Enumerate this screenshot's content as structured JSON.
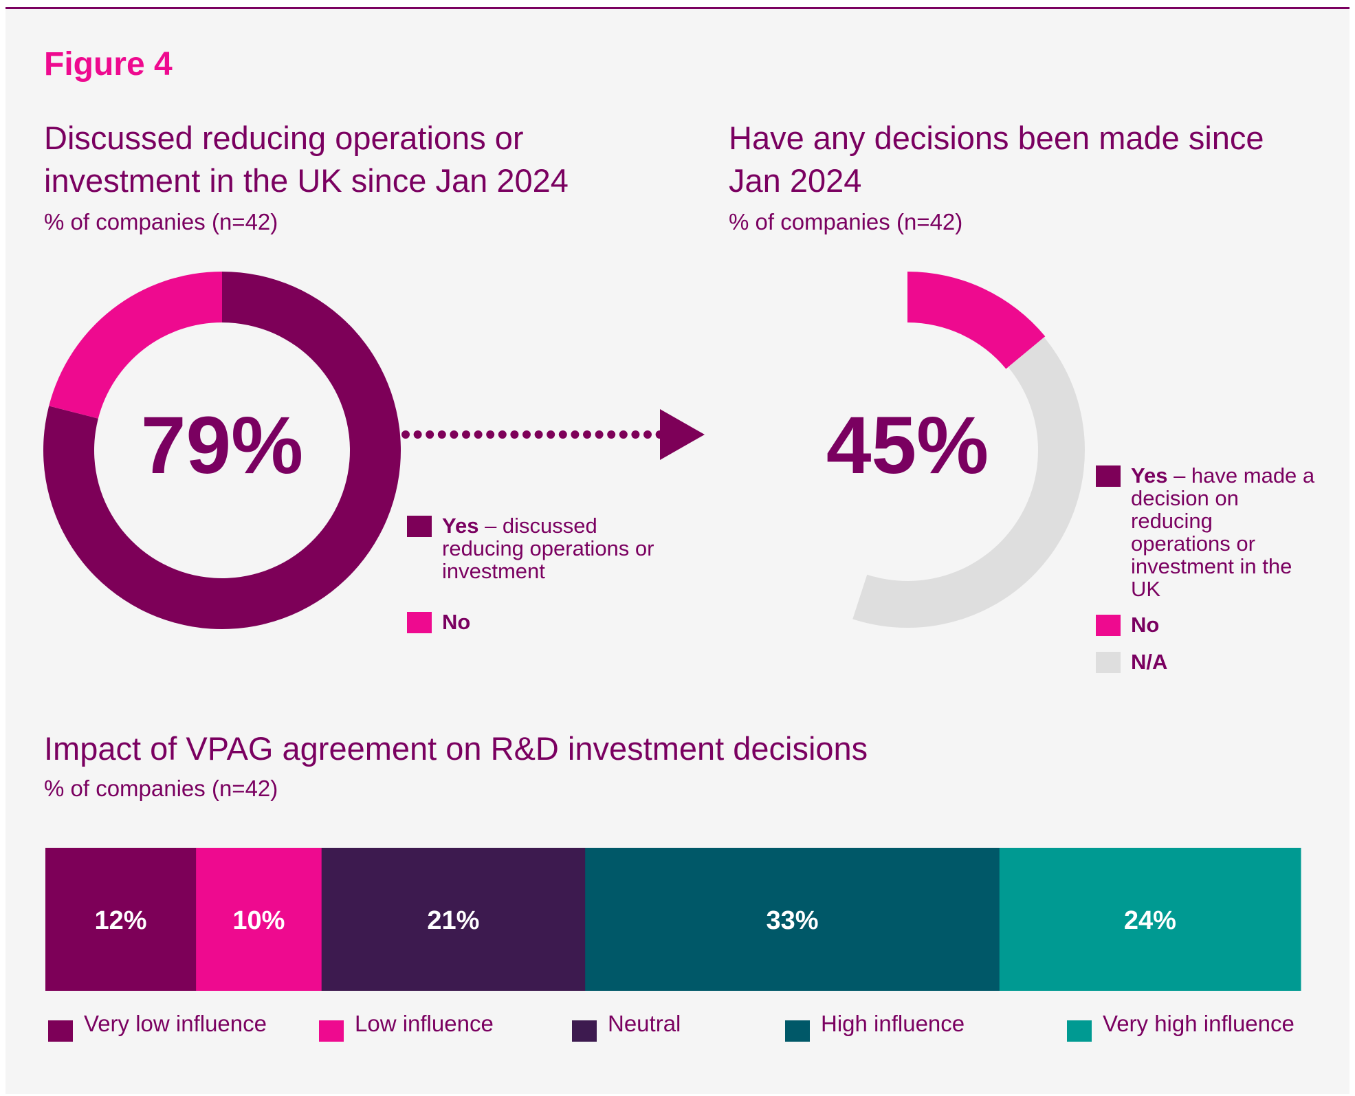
{
  "figure_label": "Figure 4",
  "colors": {
    "yes": "#7d0058",
    "no": "#ee0a8f",
    "na": "#dedede",
    "very_low": "#7d0058",
    "low": "#ee0a8f",
    "neutral": "#3d1a4f",
    "high": "#005868",
    "very_high": "#009a92"
  },
  "donut1": {
    "title": "Discussed reducing operations or investment in the UK since Jan 2024",
    "subtitle": "% of companies (n=42)",
    "center_label": "79%",
    "legend": [
      {
        "bold": "Yes",
        "rest": " – discussed reducing operations or investment"
      },
      {
        "bold": "No",
        "rest": ""
      }
    ]
  },
  "donut2": {
    "title": "Have any decisions been made since Jan 2024",
    "subtitle": "% of companies (n=42)",
    "center_label": "45%",
    "legend": [
      {
        "bold": "Yes",
        "rest": " – have made a decision on reducing operations or investment in the UK"
      },
      {
        "bold": "No",
        "rest": ""
      },
      {
        "bold": "N/A",
        "rest": ""
      }
    ]
  },
  "bar": {
    "title": "Impact of VPAG agreement on R&D investment decisions",
    "subtitle": "% of companies (n=42)"
  },
  "chart_data": [
    {
      "type": "pie",
      "title": "Discussed reducing operations or investment in the UK since Jan 2024",
      "labels": [
        "Yes",
        "No"
      ],
      "values": [
        79,
        21
      ]
    },
    {
      "type": "pie",
      "title": "Have any decisions been made since Jan 2024",
      "labels": [
        "Yes",
        "No",
        "N/A"
      ],
      "values": [
        45,
        14,
        41
      ]
    },
    {
      "type": "bar",
      "orientation": "horizontal-stacked",
      "title": "Impact of VPAG agreement on R&D investment decisions",
      "categories": [
        "Very low influence",
        "Low influence",
        "Neutral",
        "High influence",
        "Very high influence"
      ],
      "values": [
        12,
        10,
        21,
        33,
        24
      ],
      "value_labels": [
        "12%",
        "10%",
        "21%",
        "33%",
        "24%"
      ]
    }
  ]
}
